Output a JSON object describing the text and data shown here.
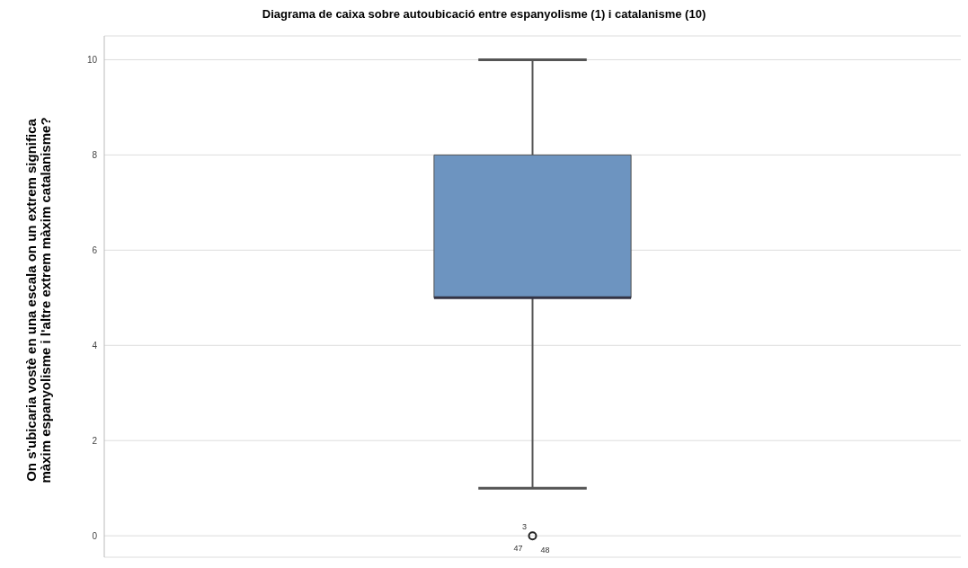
{
  "chart_data": {
    "type": "box",
    "title": "Diagrama de caixa sobre autoubicació entre espanyolisme (1) i catalanisme (10)",
    "ylabel": "On s'ubicaria vostè en una escala on un extrem significa màxim espanyolisme i l'altre extrem màxim catalanisme?",
    "categories": [
      null
    ],
    "boxes": [
      {
        "low": 1,
        "q1": 5,
        "median": 5,
        "q3": 8,
        "high": 10,
        "outliers": [
          0
        ]
      }
    ],
    "color": "#6d94c0",
    "ylim": [
      -0.45,
      10.5
    ],
    "yticks": [
      0,
      2,
      4,
      6,
      8,
      10
    ],
    "grid": "y",
    "tick_labels": "y",
    "annotations": [
      "3",
      "47",
      "48"
    ]
  }
}
